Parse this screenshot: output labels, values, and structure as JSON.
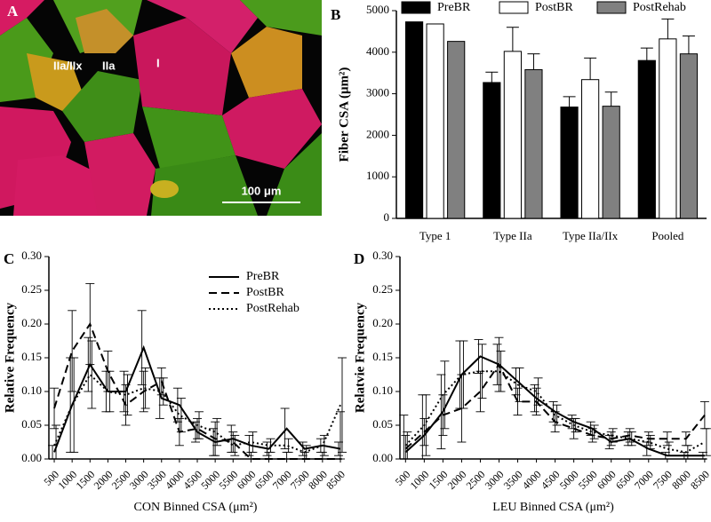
{
  "panel_a": {
    "label": "A",
    "annotations": [
      "IIa/IIx",
      "IIa",
      "I"
    ],
    "scale_bar": "100 μm"
  },
  "chart_data": [
    {
      "type": "bar",
      "panel_label": "B",
      "y_label": "Fiber CSA (μm²)",
      "categories": [
        "Type 1",
        "Type IIa",
        "Type IIa/IIx",
        "Pooled"
      ],
      "series": [
        {
          "name": "PreBR",
          "color": "#000000",
          "values": [
            4730,
            3270,
            2680,
            3800
          ],
          "errors": [
            null,
            250,
            250,
            300
          ]
        },
        {
          "name": "PostBR",
          "color": "#ffffff",
          "values": [
            4680,
            4020,
            3340,
            4320
          ],
          "errors": [
            null,
            580,
            520,
            480
          ]
        },
        {
          "name": "PostRehab",
          "color": "#808080",
          "values": [
            4260,
            3580,
            2700,
            3960
          ],
          "errors": [
            null,
            380,
            340,
            430
          ]
        }
      ],
      "ylim": [
        0,
        5000
      ],
      "yticks": [
        0,
        1000,
        2000,
        3000,
        4000,
        5000
      ],
      "legend": "top"
    },
    {
      "type": "line",
      "panel_label": "C",
      "x_label": "CON Binned CSA (μm²)",
      "y_label": "Relative Frequency",
      "categories": [
        500,
        1000,
        1500,
        2000,
        2500,
        3000,
        3500,
        4000,
        4500,
        5000,
        5500,
        6000,
        6500,
        7000,
        7500,
        8000,
        8500
      ],
      "series": [
        {
          "name": "PreBR",
          "color": "#000000",
          "dash": "solid",
          "values": [
            0.01,
            0.08,
            0.14,
            0.1,
            0.1,
            0.165,
            0.09,
            0.08,
            0.04,
            0.025,
            0.03,
            0.02,
            0.015,
            0.045,
            0.015,
            0.02,
            0.015
          ],
          "errors": [
            0.01,
            0.07,
            0.04,
            0.03,
            0.03,
            0.055,
            0.03,
            0.025,
            0.015,
            0.02,
            0.02,
            0.015,
            0.01,
            0.03,
            0.01,
            0.01,
            0.01
          ]
        },
        {
          "name": "PostBR",
          "color": "#000000",
          "dash": "dashed",
          "values": [
            0.075,
            0.16,
            0.2,
            0.13,
            0.08,
            0.1,
            0.115,
            0.04,
            0.045,
            0.03,
            0.025,
            0.0,
            0.0,
            0.0,
            0.0,
            0.0,
            0.0
          ],
          "errors": [
            0.03,
            0.06,
            0.06,
            0.03,
            0.03,
            0.03,
            0.02,
            0.02,
            0.015,
            0.025,
            0.015,
            0.01,
            0.01,
            0.01,
            0.01,
            0.01,
            0.07
          ]
        },
        {
          "name": "PostRehab",
          "color": "#000000",
          "dash": "dotted",
          "values": [
            0.02,
            0.08,
            0.125,
            0.1,
            0.095,
            0.105,
            0.1,
            0.065,
            0.05,
            0.04,
            0.02,
            0.025,
            0.02,
            0.02,
            0.01,
            0.02,
            0.08
          ],
          "errors": [
            0.03,
            0.07,
            0.05,
            0.03,
            0.03,
            0.03,
            0.02,
            0.025,
            0.02,
            0.02,
            0.015,
            0.015,
            0.01,
            0.01,
            0.01,
            0.015,
            0.07
          ]
        }
      ],
      "ylim": [
        0,
        0.3
      ],
      "yticks": [
        {
          "value": 0,
          "label": "0.00"
        },
        {
          "value": 0.05,
          "label": "0.05"
        },
        {
          "value": 0.1,
          "label": "0.10"
        },
        {
          "value": 0.15,
          "label": "0.15"
        },
        {
          "value": 0.2,
          "label": "0.20"
        },
        {
          "value": 0.25,
          "label": "0.25"
        },
        {
          "value": 0.3,
          "label": "0.30"
        }
      ],
      "legend": "top-right"
    },
    {
      "type": "line",
      "panel_label": "D",
      "x_label": "LEU Binned CSA  (μm²)",
      "y_label": "Relatvie Frequency",
      "categories": [
        500,
        1000,
        1500,
        2000,
        2500,
        3000,
        3500,
        4000,
        4500,
        5000,
        5500,
        6000,
        6500,
        7000,
        7500,
        8000,
        8500
      ],
      "series": [
        {
          "name": "PreBR",
          "color": "#000000",
          "dash": "solid",
          "values": [
            0.01,
            0.035,
            0.07,
            0.125,
            0.152,
            0.14,
            0.115,
            0.09,
            0.07,
            0.055,
            0.045,
            0.025,
            0.03,
            0.015,
            0.005,
            0.005,
            0.005
          ],
          "errors": [
            0.055,
            0.06,
            0.055,
            0.05,
            0.025,
            0.03,
            0.02,
            0.02,
            0.015,
            0.01,
            0.01,
            0.01,
            0.01,
            0.01,
            0.005,
            0.005,
            0.005
          ]
        },
        {
          "name": "PostBR",
          "color": "#000000",
          "dash": "dashed",
          "values": [
            0.015,
            0.04,
            0.065,
            0.075,
            0.1,
            0.14,
            0.085,
            0.085,
            0.055,
            0.045,
            0.035,
            0.03,
            0.035,
            0.03,
            0.03,
            0.03,
            0.065
          ],
          "errors": [
            0.02,
            0.02,
            0.03,
            0.05,
            0.03,
            0.04,
            0.02,
            0.02,
            0.015,
            0.015,
            0.01,
            0.01,
            0.01,
            0.01,
            0.01,
            0.01,
            0.02
          ]
        },
        {
          "name": "PostRehab",
          "color": "#000000",
          "dash": "dotted",
          "values": [
            0.02,
            0.05,
            0.095,
            0.125,
            0.13,
            0.13,
            0.11,
            0.1,
            0.065,
            0.05,
            0.04,
            0.035,
            0.03,
            0.025,
            0.015,
            0.01,
            0.025
          ],
          "errors": [
            0.02,
            0.045,
            0.05,
            0.05,
            0.04,
            0.03,
            0.025,
            0.02,
            0.015,
            0.01,
            0.01,
            0.01,
            0.01,
            0.01,
            0.01,
            0.01,
            0.02
          ]
        }
      ],
      "ylim": [
        0,
        0.3
      ],
      "yticks": [
        {
          "value": 0,
          "label": "0.00"
        },
        {
          "value": 0.05,
          "label": "0.05"
        },
        {
          "value": 0.1,
          "label": "0.10"
        },
        {
          "value": 0.15,
          "label": "0.15"
        },
        {
          "value": 0.2,
          "label": "0.20"
        },
        {
          "value": 0.25,
          "label": "0.25"
        },
        {
          "value": 0.3,
          "label": "0.30"
        }
      ]
    }
  ]
}
